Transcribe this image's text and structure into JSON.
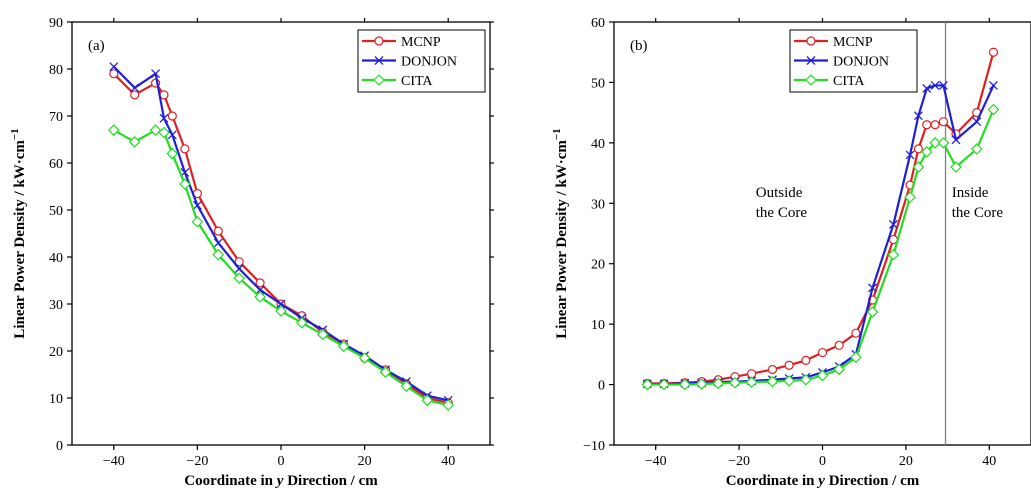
{
  "chart_data": [
    {
      "type": "line",
      "panel_label": "(a)",
      "xlabel_pre": "Coordinate in ",
      "xlabel_var": "y",
      "xlabel_post": " Direction / cm",
      "ylabel": "Linear Power Density / kW·cm",
      "ylabel_sup": "−1",
      "xlim": [
        -50,
        50
      ],
      "ylim": [
        0,
        90
      ],
      "xticks": [
        -40,
        -20,
        0,
        20,
        40
      ],
      "xtick_labels": [
        "−40",
        "−20",
        "0",
        "20",
        "40"
      ],
      "yticks": [
        0,
        10,
        20,
        30,
        40,
        50,
        60,
        70,
        80,
        90
      ],
      "ytick_labels": [
        "0",
        "10",
        "20",
        "30",
        "40",
        "50",
        "60",
        "70",
        "80",
        "90"
      ],
      "grid": false,
      "legend_position": "top-right",
      "series": [
        {
          "name": "MCNP",
          "color": "#e02020",
          "marker": "circle",
          "x": [
            -40,
            -35,
            -30,
            -28,
            -26,
            -23,
            -20,
            -15,
            -10,
            -5,
            0,
            5,
            10,
            15,
            20,
            25,
            30,
            35,
            40
          ],
          "y": [
            79,
            74.5,
            77,
            74.5,
            70,
            63,
            53.5,
            45.5,
            39,
            34.5,
            30,
            27.5,
            24,
            21.5,
            18.5,
            16,
            13,
            10,
            9
          ]
        },
        {
          "name": "DONJON",
          "color": "#1f1fd6",
          "marker": "x",
          "x": [
            -40,
            -35,
            -30,
            -28,
            -26,
            -23,
            -20,
            -15,
            -10,
            -5,
            0,
            5,
            10,
            15,
            20,
            25,
            30,
            35,
            40
          ],
          "y": [
            80.5,
            76,
            79,
            69.5,
            66,
            58,
            51,
            43,
            37.5,
            33,
            30,
            27,
            24.5,
            21.5,
            19,
            16,
            13.5,
            10.5,
            9.5
          ]
        },
        {
          "name": "CITA",
          "color": "#22dd22",
          "marker": "diamond",
          "x": [
            -40,
            -35,
            -30,
            -28,
            -26,
            -23,
            -20,
            -15,
            -10,
            -5,
            0,
            5,
            10,
            15,
            20,
            25,
            30,
            35,
            40
          ],
          "y": [
            67,
            64.5,
            67,
            66.5,
            62,
            55.5,
            47.5,
            40.5,
            35.5,
            31.5,
            28.5,
            26,
            23.5,
            21,
            18.5,
            15.5,
            12.5,
            9.5,
            8.5
          ]
        }
      ]
    },
    {
      "type": "line",
      "panel_label": "(b)",
      "xlabel_pre": "Coordinate in ",
      "xlabel_var": "y",
      "xlabel_post": " Direction / cm",
      "ylabel": "Linear Power Density / kW·cm",
      "ylabel_sup": "−1",
      "xlim": [
        -50,
        50
      ],
      "ylim": [
        -10,
        60
      ],
      "xticks": [
        -40,
        -20,
        0,
        20,
        40
      ],
      "xtick_labels": [
        "−40",
        "−20",
        "0",
        "20",
        "40"
      ],
      "yticks": [
        -10,
        0,
        10,
        20,
        30,
        40,
        50,
        60
      ],
      "ytick_labels": [
        "−10",
        "0",
        "10",
        "20",
        "30",
        "40",
        "50",
        "60"
      ],
      "grid": false,
      "legend_position": "top-center",
      "vline_x": 29.5,
      "annotations": [
        {
          "lines": [
            "Outside",
            "the Core"
          ],
          "x": -16,
          "y": 31
        },
        {
          "lines": [
            "Inside",
            "the Core"
          ],
          "x": 31,
          "y": 31
        }
      ],
      "series": [
        {
          "name": "MCNP",
          "color": "#e02020",
          "marker": "circle",
          "x": [
            -42,
            -38,
            -33,
            -29,
            -25,
            -21,
            -17,
            -12,
            -8,
            -4,
            0,
            4,
            8,
            12,
            17,
            21,
            23,
            25,
            27,
            29,
            32,
            37,
            41
          ],
          "y": [
            0.2,
            0.2,
            0.3,
            0.5,
            0.8,
            1.3,
            1.8,
            2.5,
            3.2,
            4,
            5.3,
            6.5,
            8.5,
            14,
            24,
            33,
            39,
            43,
            43,
            43.5,
            41.5,
            45,
            55
          ]
        },
        {
          "name": "DONJON",
          "color": "#1f1fd6",
          "marker": "x",
          "x": [
            -42,
            -38,
            -33,
            -29,
            -25,
            -21,
            -17,
            -12,
            -8,
            -4,
            0,
            4,
            8,
            12,
            17,
            21,
            23,
            25,
            27,
            29,
            32,
            37,
            41
          ],
          "y": [
            0.1,
            0.1,
            0.2,
            0.3,
            0.4,
            0.5,
            0.6,
            0.8,
            1,
            1.2,
            2,
            3,
            5,
            16,
            26.5,
            38,
            44.5,
            49,
            49.5,
            49.5,
            40.5,
            43.5,
            49.5
          ]
        },
        {
          "name": "CITA",
          "color": "#22dd22",
          "marker": "diamond",
          "x": [
            -42,
            -38,
            -33,
            -29,
            -25,
            -21,
            -17,
            -12,
            -8,
            -4,
            0,
            4,
            8,
            12,
            17,
            21,
            23,
            25,
            27,
            29,
            32,
            37,
            41
          ],
          "y": [
            0,
            0,
            0,
            0.1,
            0.2,
            0.3,
            0.4,
            0.5,
            0.6,
            0.8,
            1.5,
            2.5,
            4.5,
            12,
            21.5,
            31,
            36,
            38.5,
            40,
            40,
            36,
            39,
            45.5
          ]
        }
      ]
    }
  ]
}
